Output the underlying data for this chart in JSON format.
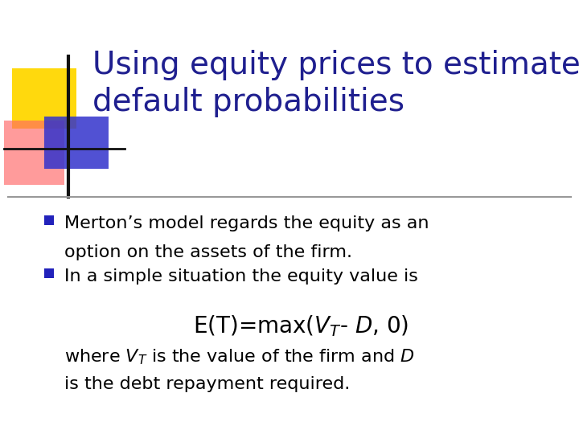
{
  "title_line1": "Using equity prices to estimate",
  "title_line2": "default probabilities",
  "title_color": "#1F1F8F",
  "background_color": "#FFFFFF",
  "bullet_color": "#2222BB",
  "bullet1_line1": "Merton’s model regards the equity as an",
  "bullet1_line2": "option on the assets of the firm.",
  "bullet2": "In a simple situation the equity value is",
  "formula": "E(T)=max($V_T$- $D$, 0)",
  "where_line1": "where $V_T$ is the value of the firm and $D$",
  "where_line2": "is the debt repayment required.",
  "body_color": "#000000",
  "separator_color": "#999999",
  "decorator_yellow": "#FFD700",
  "decorator_red": "#FF6666",
  "decorator_blue": "#3333CC",
  "decorator_line": "#111111",
  "title_fontsize": 28,
  "body_fontsize": 16,
  "formula_fontsize": 20
}
